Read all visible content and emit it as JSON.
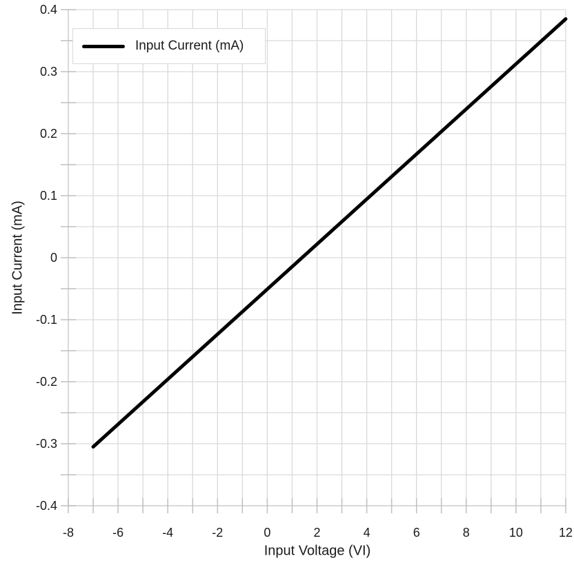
{
  "chart": {
    "legend": {
      "label": "Input Current (mA)"
    }
  },
  "colors": {
    "background": "#ffffff",
    "grid": "#d9d9d9",
    "axis": "#d9d9d9",
    "tick": "#bfbfbf",
    "text": "#1a1a1a",
    "series": "#000000",
    "legend_border": "#d9d9d9"
  },
  "chart_data": {
    "type": "line",
    "title": "",
    "xlabel": "Input Voltage (VI)",
    "ylabel": "Input Current (mA)",
    "legend": [
      "Input Current (mA)"
    ],
    "legend_position": "top-left",
    "xlim": [
      -8,
      12
    ],
    "ylim": [
      -0.4,
      0.4
    ],
    "x_major_ticks": [
      -8,
      -6,
      -4,
      -2,
      0,
      2,
      4,
      6,
      8,
      10,
      12
    ],
    "x_minor_step": 1,
    "y_major_ticks": [
      -0.4,
      -0.3,
      -0.2,
      -0.1,
      0,
      0.1,
      0.2,
      0.3,
      0.4
    ],
    "y_minor_step": 0.05,
    "grid": "minor",
    "series": [
      {
        "name": "Input Current (mA)",
        "color": "#000000",
        "line_width": 5,
        "marker": "none",
        "shape": "straight-line",
        "points": [
          {
            "x": -7,
            "y": -0.305
          },
          {
            "x": 12,
            "y": 0.385
          }
        ]
      }
    ]
  }
}
